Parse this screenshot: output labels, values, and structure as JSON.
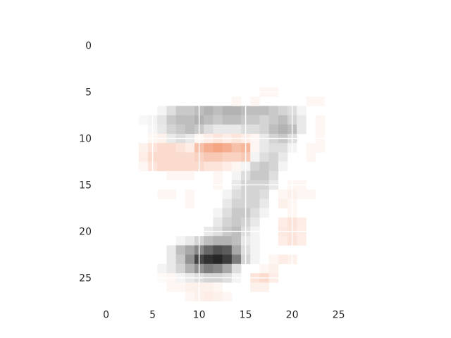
{
  "chart_data": {
    "type": "heatmap",
    "title": "",
    "xlabel": "",
    "ylabel": "",
    "grid": true,
    "rows": 28,
    "cols": 28,
    "xlim": [
      -0.5,
      27.5
    ],
    "ylim": [
      27.5,
      -0.5
    ],
    "x_ticks": [
      "0",
      "5",
      "10",
      "15",
      "20",
      "25"
    ],
    "y_ticks": [
      "0",
      "5",
      "10",
      "15",
      "20",
      "25"
    ],
    "negative_color": "#262626",
    "positive_color": "#f4a582",
    "background_color": "#ffffff",
    "value_range": [
      -1,
      0.5
    ],
    "cells": [
      [
        7,
        6,
        -0.05
      ],
      [
        7,
        7,
        -0.15
      ],
      [
        7,
        8,
        -0.25
      ],
      [
        7,
        9,
        -0.25
      ],
      [
        7,
        10,
        -0.3
      ],
      [
        7,
        11,
        -0.35
      ],
      [
        7,
        12,
        -0.3
      ],
      [
        7,
        13,
        -0.35
      ],
      [
        7,
        14,
        -0.35
      ],
      [
        7,
        15,
        -0.3
      ],
      [
        7,
        16,
        -0.3
      ],
      [
        7,
        17,
        -0.3
      ],
      [
        7,
        18,
        -0.25
      ],
      [
        7,
        19,
        -0.2
      ],
      [
        7,
        20,
        -0.15
      ],
      [
        7,
        21,
        -0.05
      ],
      [
        8,
        4,
        -0.03
      ],
      [
        8,
        5,
        -0.05
      ],
      [
        8,
        6,
        -0.12
      ],
      [
        8,
        7,
        -0.25
      ],
      [
        8,
        8,
        -0.3
      ],
      [
        8,
        9,
        -0.3
      ],
      [
        8,
        10,
        -0.35
      ],
      [
        8,
        11,
        -0.3
      ],
      [
        8,
        12,
        -0.25
      ],
      [
        8,
        13,
        -0.3
      ],
      [
        8,
        14,
        -0.3
      ],
      [
        8,
        15,
        -0.25
      ],
      [
        8,
        16,
        -0.25
      ],
      [
        8,
        17,
        -0.2
      ],
      [
        8,
        18,
        -0.25
      ],
      [
        8,
        19,
        -0.3
      ],
      [
        8,
        20,
        -0.2
      ],
      [
        8,
        21,
        -0.1
      ],
      [
        9,
        5,
        -0.04
      ],
      [
        9,
        6,
        -0.1
      ],
      [
        9,
        7,
        -0.2
      ],
      [
        9,
        8,
        -0.25
      ],
      [
        9,
        9,
        -0.3
      ],
      [
        9,
        10,
        -0.25
      ],
      [
        9,
        11,
        -0.15
      ],
      [
        9,
        12,
        -0.1
      ],
      [
        9,
        13,
        -0.1
      ],
      [
        9,
        14,
        -0.1
      ],
      [
        9,
        15,
        -0.15
      ],
      [
        9,
        16,
        -0.15
      ],
      [
        9,
        17,
        -0.2
      ],
      [
        9,
        18,
        -0.3
      ],
      [
        9,
        19,
        -0.35
      ],
      [
        9,
        20,
        -0.3
      ],
      [
        9,
        21,
        -0.1
      ],
      [
        10,
        5,
        0.05
      ],
      [
        10,
        6,
        0.08
      ],
      [
        10,
        7,
        -0.1
      ],
      [
        10,
        8,
        -0.15
      ],
      [
        10,
        9,
        -0.1
      ],
      [
        10,
        10,
        0.05
      ],
      [
        10,
        11,
        0.1
      ],
      [
        10,
        12,
        0.15
      ],
      [
        10,
        13,
        0.1
      ],
      [
        10,
        14,
        0.15
      ],
      [
        10,
        15,
        0.1
      ],
      [
        10,
        16,
        0.05
      ],
      [
        10,
        17,
        -0.1
      ],
      [
        10,
        18,
        -0.2
      ],
      [
        10,
        19,
        -0.25
      ],
      [
        10,
        20,
        -0.15
      ],
      [
        11,
        4,
        0.08
      ],
      [
        11,
        5,
        0.15
      ],
      [
        11,
        6,
        0.2
      ],
      [
        11,
        7,
        0.2
      ],
      [
        11,
        8,
        0.15
      ],
      [
        11,
        9,
        0.1
      ],
      [
        11,
        10,
        0.35
      ],
      [
        11,
        11,
        0.45
      ],
      [
        11,
        12,
        0.5
      ],
      [
        11,
        13,
        0.45
      ],
      [
        11,
        14,
        0.35
      ],
      [
        11,
        15,
        0.4
      ],
      [
        11,
        16,
        0.05
      ],
      [
        11,
        17,
        -0.1
      ],
      [
        11,
        18,
        -0.15
      ],
      [
        11,
        19,
        -0.15
      ],
      [
        11,
        20,
        -0.05
      ],
      [
        12,
        4,
        0.1
      ],
      [
        12,
        5,
        0.2
      ],
      [
        12,
        6,
        0.2
      ],
      [
        12,
        7,
        0.2
      ],
      [
        12,
        8,
        0.2
      ],
      [
        12,
        9,
        0.2
      ],
      [
        12,
        10,
        0.25
      ],
      [
        12,
        11,
        0.3
      ],
      [
        12,
        12,
        0.3
      ],
      [
        12,
        13,
        0.25
      ],
      [
        12,
        14,
        0.25
      ],
      [
        12,
        15,
        0.3
      ],
      [
        12,
        16,
        -0.05
      ],
      [
        12,
        17,
        -0.15
      ],
      [
        12,
        18,
        -0.2
      ],
      [
        12,
        19,
        -0.1
      ],
      [
        13,
        4,
        0.05
      ],
      [
        13,
        5,
        0.15
      ],
      [
        13,
        6,
        0.2
      ],
      [
        13,
        7,
        0.2
      ],
      [
        13,
        8,
        0.2
      ],
      [
        13,
        9,
        0.2
      ],
      [
        13,
        10,
        0.2
      ],
      [
        13,
        11,
        0.15
      ],
      [
        13,
        12,
        0.15
      ],
      [
        13,
        13,
        0.1
      ],
      [
        13,
        14,
        0.05
      ],
      [
        13,
        15,
        -0.05
      ],
      [
        13,
        16,
        -0.2
      ],
      [
        13,
        17,
        -0.25
      ],
      [
        13,
        18,
        -0.2
      ],
      [
        13,
        19,
        -0.05
      ],
      [
        14,
        7,
        0.05
      ],
      [
        14,
        8,
        0.05
      ],
      [
        14,
        9,
        0.05
      ],
      [
        14,
        12,
        0.05
      ],
      [
        14,
        14,
        -0.05
      ],
      [
        14,
        15,
        -0.15
      ],
      [
        14,
        16,
        -0.25
      ],
      [
        14,
        17,
        -0.25
      ],
      [
        14,
        18,
        -0.15
      ],
      [
        15,
        12,
        0.05
      ],
      [
        15,
        14,
        -0.1
      ],
      [
        15,
        15,
        -0.2
      ],
      [
        15,
        16,
        -0.2
      ],
      [
        15,
        17,
        -0.2
      ],
      [
        15,
        18,
        -0.1
      ],
      [
        15,
        20,
        0.05
      ],
      [
        15,
        21,
        0.05
      ],
      [
        16,
        6,
        0.05
      ],
      [
        16,
        7,
        0.05
      ],
      [
        16,
        9,
        0.05
      ],
      [
        16,
        13,
        -0.05
      ],
      [
        16,
        14,
        -0.15
      ],
      [
        16,
        15,
        -0.2
      ],
      [
        16,
        16,
        -0.2
      ],
      [
        16,
        17,
        -0.15
      ],
      [
        16,
        19,
        0.05
      ],
      [
        16,
        20,
        0.08
      ],
      [
        16,
        21,
        0.05
      ],
      [
        16,
        22,
        0.05
      ],
      [
        17,
        9,
        0.05
      ],
      [
        17,
        13,
        -0.1
      ],
      [
        17,
        14,
        -0.2
      ],
      [
        17,
        15,
        -0.2
      ],
      [
        17,
        16,
        -0.2
      ],
      [
        17,
        17,
        -0.1
      ],
      [
        17,
        19,
        0.08
      ],
      [
        17,
        20,
        0.05
      ],
      [
        18,
        12,
        -0.05
      ],
      [
        18,
        13,
        -0.15
      ],
      [
        18,
        14,
        -0.25
      ],
      [
        18,
        15,
        -0.25
      ],
      [
        18,
        16,
        -0.15
      ],
      [
        18,
        17,
        -0.05
      ],
      [
        18,
        20,
        0.05
      ],
      [
        19,
        12,
        -0.1
      ],
      [
        19,
        13,
        -0.2
      ],
      [
        19,
        14,
        -0.25
      ],
      [
        19,
        15,
        -0.2
      ],
      [
        19,
        16,
        -0.1
      ],
      [
        19,
        19,
        0.1
      ],
      [
        19,
        20,
        0.15
      ],
      [
        19,
        21,
        0.1
      ],
      [
        20,
        11,
        -0.1
      ],
      [
        20,
        12,
        -0.15
      ],
      [
        20,
        13,
        -0.25
      ],
      [
        20,
        14,
        -0.3
      ],
      [
        20,
        15,
        -0.15
      ],
      [
        20,
        16,
        -0.05
      ],
      [
        20,
        19,
        0.12
      ],
      [
        20,
        20,
        0.15
      ],
      [
        20,
        21,
        0.1
      ],
      [
        21,
        8,
        -0.05
      ],
      [
        21,
        9,
        -0.1
      ],
      [
        21,
        10,
        -0.2
      ],
      [
        21,
        11,
        -0.3
      ],
      [
        21,
        12,
        -0.35
      ],
      [
        21,
        13,
        -0.35
      ],
      [
        21,
        14,
        -0.3
      ],
      [
        21,
        15,
        -0.1
      ],
      [
        21,
        16,
        -0.05
      ],
      [
        21,
        19,
        0.1
      ],
      [
        21,
        20,
        0.15
      ],
      [
        21,
        21,
        0.1
      ],
      [
        22,
        7,
        -0.1
      ],
      [
        22,
        8,
        -0.3
      ],
      [
        22,
        9,
        -0.4
      ],
      [
        22,
        10,
        -0.55
      ],
      [
        22,
        11,
        -0.7
      ],
      [
        22,
        12,
        -0.8
      ],
      [
        22,
        13,
        -0.75
      ],
      [
        22,
        14,
        -0.4
      ],
      [
        22,
        15,
        -0.15
      ],
      [
        22,
        16,
        -0.05
      ],
      [
        23,
        7,
        -0.1
      ],
      [
        23,
        8,
        -0.25
      ],
      [
        23,
        9,
        -0.5
      ],
      [
        23,
        10,
        -0.85
      ],
      [
        23,
        11,
        -0.95
      ],
      [
        23,
        12,
        -1.0
      ],
      [
        23,
        13,
        -0.9
      ],
      [
        23,
        14,
        -0.6
      ],
      [
        23,
        15,
        -0.2
      ],
      [
        23,
        16,
        -0.05
      ],
      [
        23,
        18,
        0.05
      ],
      [
        23,
        19,
        0.1
      ],
      [
        23,
        20,
        0.08
      ],
      [
        24,
        6,
        -0.05
      ],
      [
        24,
        7,
        -0.1
      ],
      [
        24,
        8,
        -0.2
      ],
      [
        24,
        9,
        -0.35
      ],
      [
        24,
        10,
        -0.5
      ],
      [
        24,
        11,
        -0.6
      ],
      [
        24,
        12,
        -0.55
      ],
      [
        24,
        13,
        -0.4
      ],
      [
        24,
        14,
        -0.15
      ],
      [
        24,
        17,
        0.05
      ],
      [
        24,
        18,
        0.08
      ],
      [
        25,
        6,
        0.03
      ],
      [
        25,
        7,
        0.05
      ],
      [
        25,
        8,
        -0.05
      ],
      [
        25,
        9,
        -0.1
      ],
      [
        25,
        10,
        -0.15
      ],
      [
        25,
        11,
        -0.2
      ],
      [
        25,
        12,
        -0.2
      ],
      [
        25,
        13,
        -0.15
      ],
      [
        25,
        14,
        -0.05
      ],
      [
        25,
        16,
        0.15
      ],
      [
        25,
        17,
        0.2
      ],
      [
        25,
        18,
        0.1
      ],
      [
        26,
        7,
        0.05
      ],
      [
        26,
        8,
        0.05
      ],
      [
        26,
        9,
        0.08
      ],
      [
        26,
        10,
        0.08
      ],
      [
        26,
        11,
        0.08
      ],
      [
        26,
        12,
        0.05
      ],
      [
        26,
        16,
        0.08
      ],
      [
        26,
        17,
        0.08
      ],
      [
        27,
        9,
        0.05
      ],
      [
        27,
        10,
        0.08
      ],
      [
        27,
        11,
        0.1
      ],
      [
        27,
        12,
        0.08
      ],
      [
        27,
        13,
        0.05
      ],
      [
        6,
        14,
        0.05
      ],
      [
        6,
        16,
        0.05
      ],
      [
        6,
        22,
        0.05
      ],
      [
        6,
        23,
        0.05
      ],
      [
        8,
        23,
        0.05
      ],
      [
        9,
        23,
        0.05
      ],
      [
        10,
        23,
        0.05
      ],
      [
        11,
        22,
        0.05
      ],
      [
        11,
        23,
        0.05
      ],
      [
        12,
        22,
        0.05
      ],
      [
        5,
        17,
        0.05
      ],
      [
        5,
        18,
        0.05
      ]
    ]
  }
}
